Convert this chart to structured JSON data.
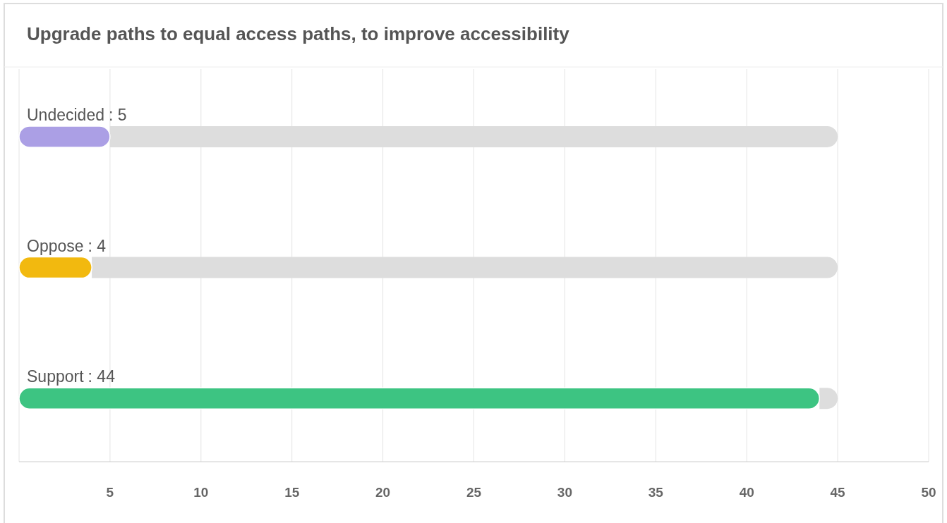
{
  "chart_data": {
    "type": "bar",
    "orientation": "horizontal",
    "stacked": true,
    "title": "Upgrade paths to equal access paths, to improve accessibility",
    "categories": [
      "Undecided",
      "Oppose",
      "Support"
    ],
    "series": [
      {
        "colors": [
          "#ab9fe5",
          "#f2b90f",
          "#3dc482"
        ],
        "values": [
          5,
          4,
          44
        ],
        "value_labels": [
          ": 5",
          ": 4",
          ": 44"
        ]
      },
      {
        "color": "#dddddd",
        "values": [
          40,
          41,
          1
        ]
      }
    ],
    "xlim": [
      0,
      50
    ],
    "xticks": [
      5,
      10,
      15,
      20,
      25,
      30,
      35,
      40,
      45,
      50
    ],
    "grid": "x"
  }
}
